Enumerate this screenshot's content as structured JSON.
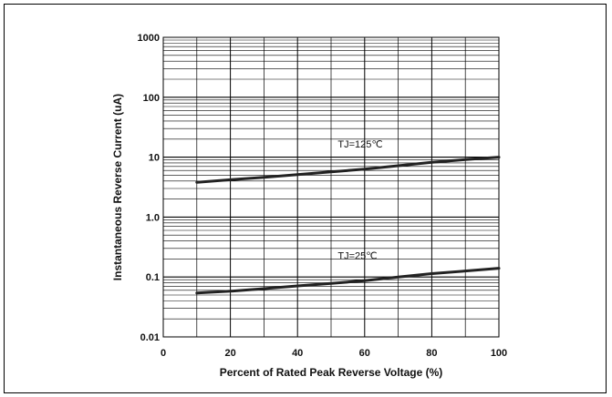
{
  "chart_data": {
    "type": "line",
    "title": "",
    "xlabel": "Percent of Rated Peak Reverse Voltage (%)",
    "ylabel": "Instantaneous Reverse Current (uA)",
    "xlim": [
      0,
      100
    ],
    "ylim": [
      0.01,
      1000
    ],
    "yscale": "log",
    "grid": true,
    "x_ticks": [
      0,
      20,
      40,
      60,
      80,
      100
    ],
    "x_tick_labels": [
      "0",
      "20",
      "40",
      "60",
      "80",
      "100"
    ],
    "y_ticks": [
      0.01,
      0.1,
      1,
      10,
      100,
      1000
    ],
    "y_tick_labels": [
      "0.01",
      "0.1",
      "1.0",
      "10",
      "100",
      "1000"
    ],
    "line_color": "#222222",
    "grid_color": "#000000",
    "series": [
      {
        "label": "TJ=125℃",
        "x": [
          10,
          20,
          30,
          40,
          50,
          60,
          70,
          80,
          90,
          100
        ],
        "y": [
          3.8,
          4.2,
          4.6,
          5.1,
          5.7,
          6.3,
          7.2,
          8.2,
          9.1,
          10.0
        ]
      },
      {
        "label": "TJ=25℃",
        "x": [
          10,
          20,
          30,
          40,
          50,
          60,
          70,
          80,
          90,
          100
        ],
        "y": [
          0.054,
          0.058,
          0.064,
          0.071,
          0.078,
          0.087,
          0.1,
          0.114,
          0.126,
          0.14
        ]
      }
    ]
  }
}
